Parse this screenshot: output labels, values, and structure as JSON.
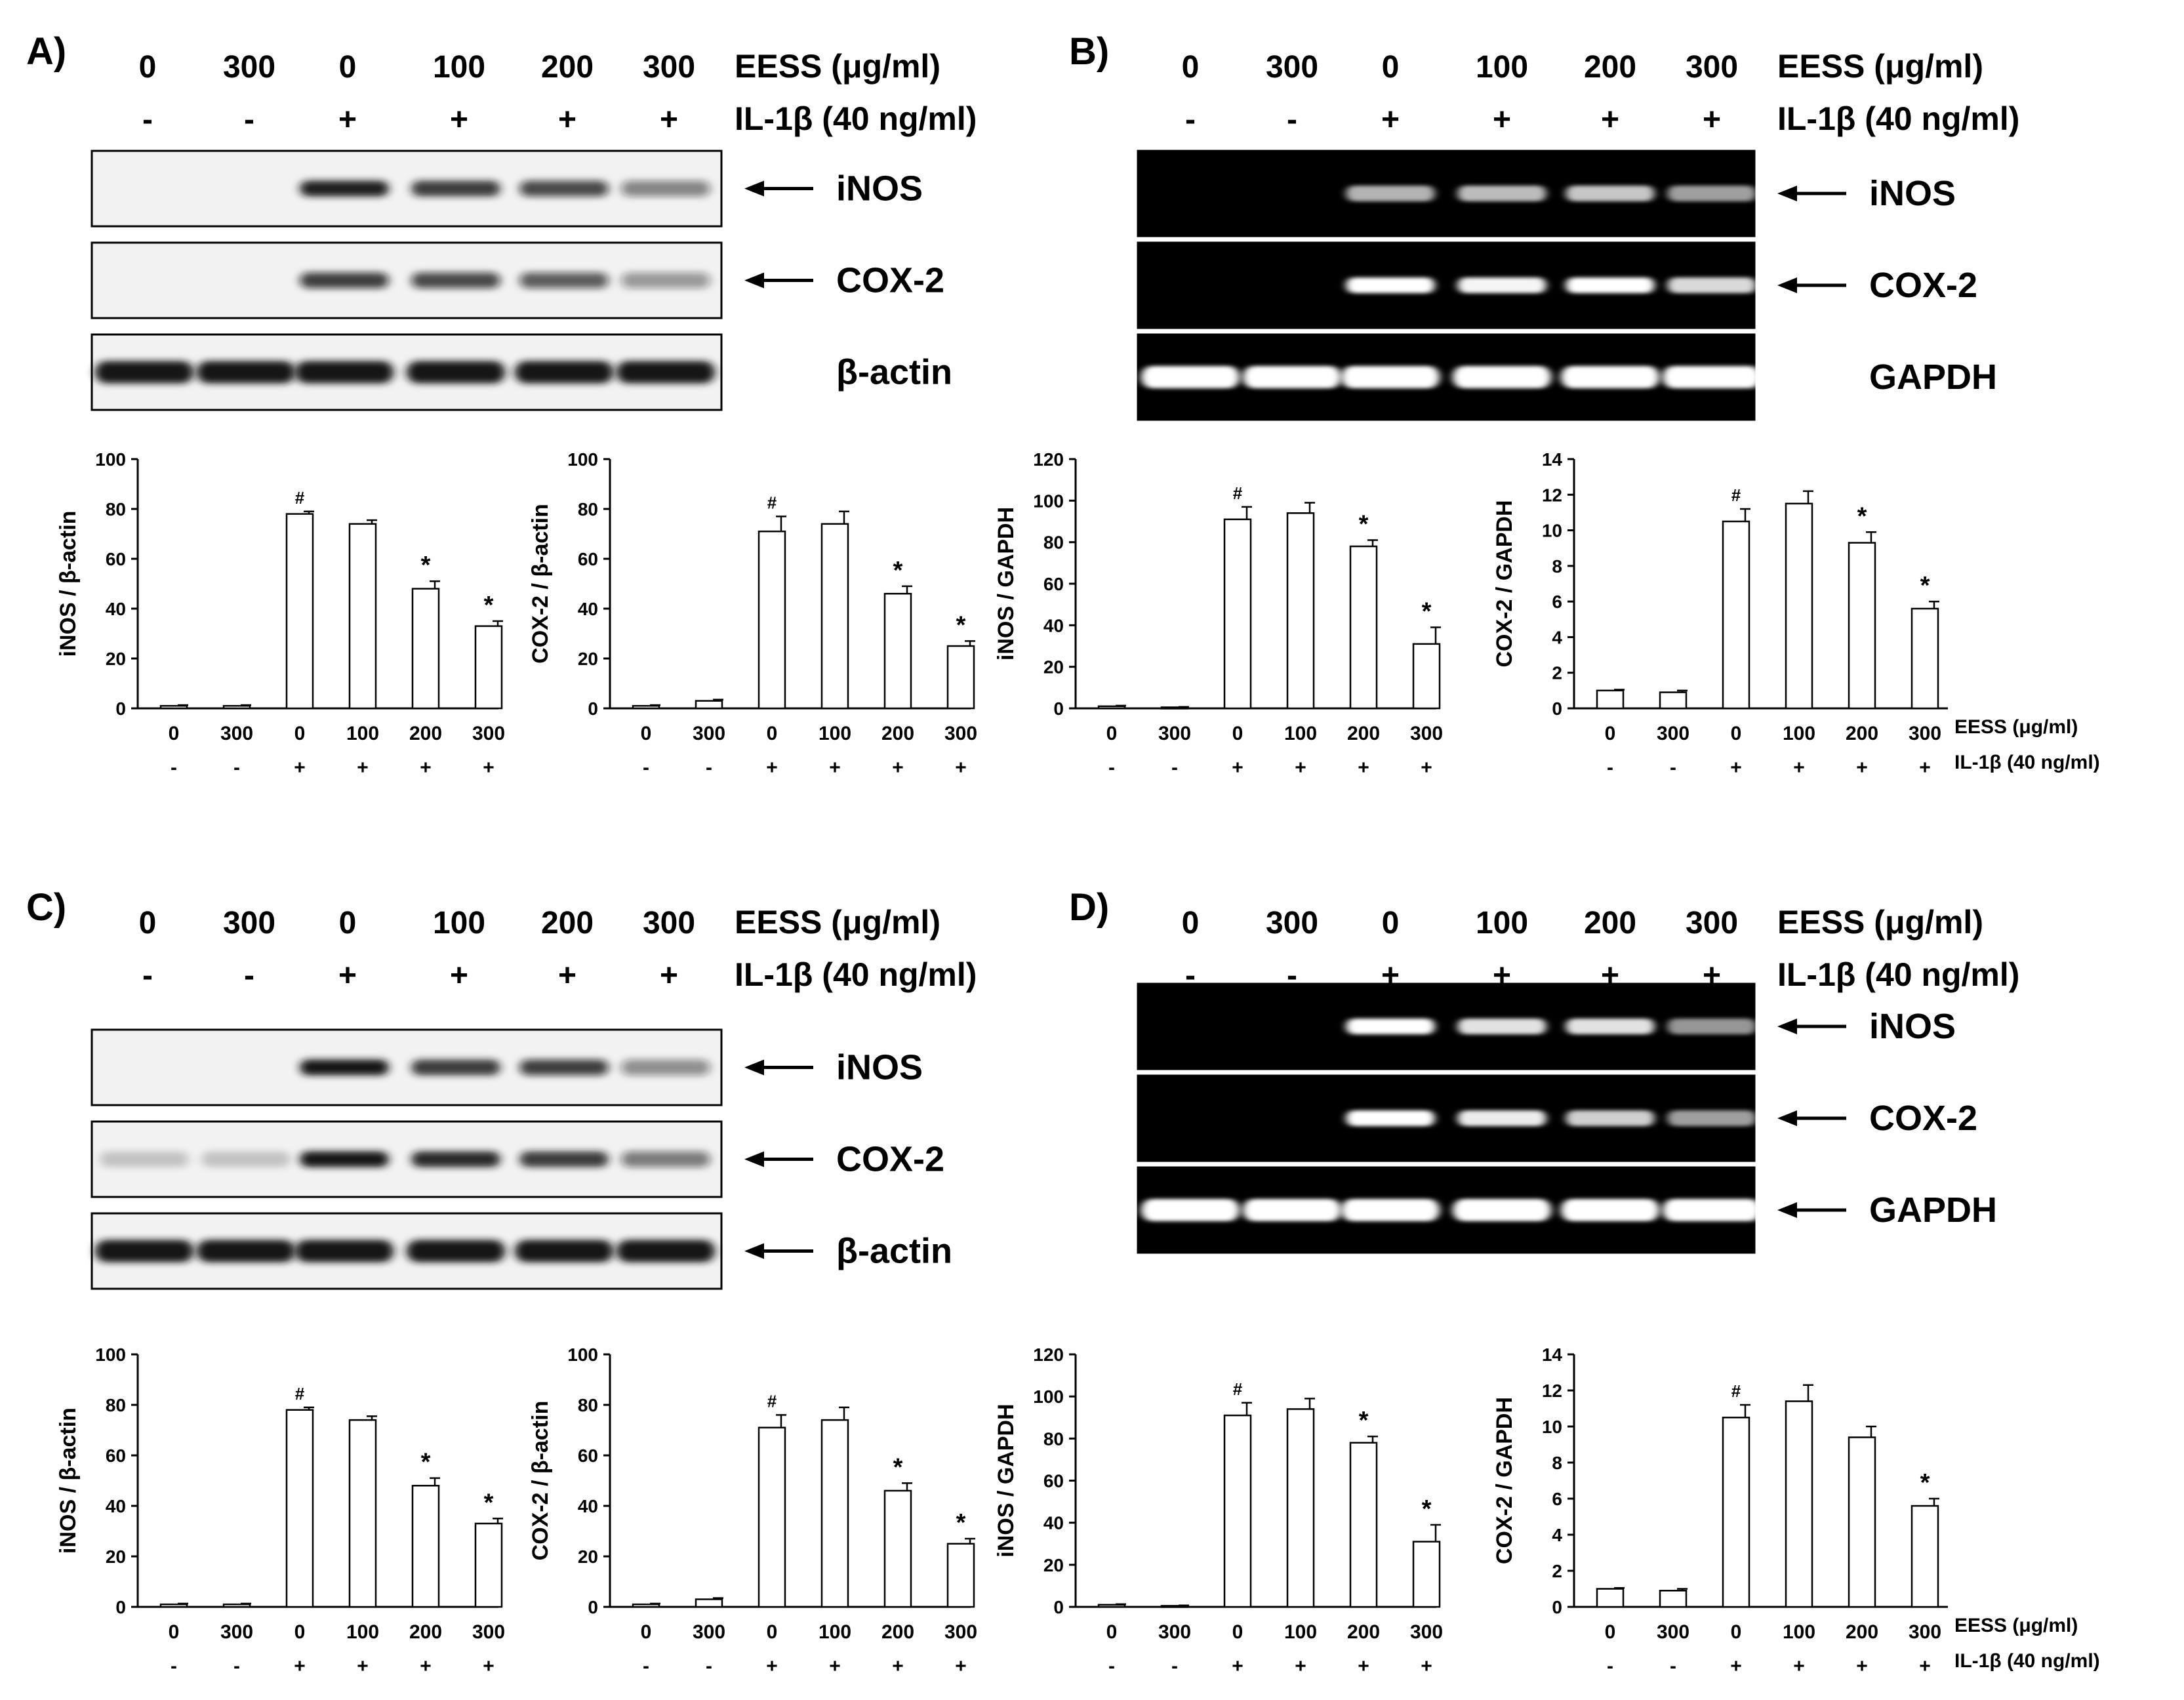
{
  "panels": [
    {
      "label": "A)",
      "treat": [
        "0",
        "300",
        "0",
        "100",
        "200",
        "300"
      ],
      "il": [
        "-",
        "-",
        "+",
        "+",
        "+",
        "+"
      ],
      "treat_label": "EESS (μg/ml)",
      "il_label": "IL-1β (40 ng/ml)",
      "blot": "western",
      "bands": [
        {
          "name": "iNOS",
          "arrow": true,
          "intensity": [
            0,
            0,
            0.95,
            0.8,
            0.7,
            0.4
          ]
        },
        {
          "name": "COX-2",
          "arrow": true,
          "intensity": [
            0,
            0,
            0.75,
            0.7,
            0.6,
            0.3
          ]
        },
        {
          "name": "β-actin",
          "arrow": false,
          "intensity": [
            1,
            1,
            1,
            1,
            1,
            1
          ]
        }
      ]
    },
    {
      "label": "B)",
      "treat": [
        "0",
        "300",
        "0",
        "100",
        "200",
        "300"
      ],
      "il": [
        "-",
        "-",
        "+",
        "+",
        "+",
        "+"
      ],
      "treat_label": "EESS (μg/ml)",
      "il_label": "IL-1β (40 ng/ml)",
      "blot": "gel",
      "bands": [
        {
          "name": "iNOS",
          "arrow": true,
          "intensity": [
            0,
            0,
            0.6,
            0.65,
            0.7,
            0.5
          ]
        },
        {
          "name": "COX-2",
          "arrow": true,
          "intensity": [
            0,
            0,
            1,
            0.95,
            1,
            0.8
          ]
        },
        {
          "name": "GAPDH",
          "arrow": false,
          "intensity": [
            1,
            1,
            1,
            1,
            1,
            1
          ]
        }
      ]
    },
    {
      "label": "C)",
      "treat": [
        "0",
        "300",
        "0",
        "100",
        "200",
        "300"
      ],
      "il": [
        "-",
        "-",
        "+",
        "+",
        "+",
        "+"
      ],
      "treat_label": "EESS (μg/ml)",
      "il_label": "IL-1β (40 ng/ml)",
      "blot": "western",
      "bands": [
        {
          "name": "iNOS",
          "arrow": true,
          "intensity": [
            0,
            0,
            1,
            0.8,
            0.75,
            0.35
          ]
        },
        {
          "name": "COX-2",
          "arrow": true,
          "intensity": [
            0.05,
            0.05,
            1,
            0.9,
            0.8,
            0.45
          ]
        },
        {
          "name": "β-actin",
          "arrow": true,
          "intensity": [
            1,
            1,
            1,
            1,
            1,
            1
          ]
        }
      ]
    },
    {
      "label": "D)",
      "treat": [
        "0",
        "300",
        "0",
        "100",
        "200",
        "300"
      ],
      "il": [
        "-",
        "-",
        "+",
        "+",
        "+",
        "+"
      ],
      "treat_label": "EESS (μg/ml)",
      "il_label": "IL-1β (40 ng/ml)",
      "blot": "gel",
      "bands": [
        {
          "name": "iNOS",
          "arrow": true,
          "intensity": [
            0,
            0,
            1,
            0.85,
            0.85,
            0.45
          ]
        },
        {
          "name": "COX-2",
          "arrow": true,
          "intensity": [
            0,
            0,
            1,
            0.9,
            0.75,
            0.5
          ]
        },
        {
          "name": "GAPDH",
          "arrow": true,
          "intensity": [
            1,
            1,
            1,
            1,
            1,
            1
          ]
        }
      ]
    }
  ],
  "chart_data": [
    {
      "type": "bar",
      "ylabel": "iNOS / β-actin",
      "categories": [
        "0",
        "300",
        "0",
        "100",
        "200",
        "300"
      ],
      "il": [
        "-",
        "-",
        "+",
        "+",
        "+",
        "+"
      ],
      "values": [
        1,
        1,
        78,
        74,
        48,
        33
      ],
      "errors": [
        0.3,
        0.3,
        1,
        1.5,
        3,
        2
      ],
      "marks": [
        "",
        "",
        "#",
        "",
        "*",
        "*"
      ],
      "ylim": [
        0,
        100
      ],
      "yticks": [
        0,
        20,
        40,
        60,
        80,
        100
      ]
    },
    {
      "type": "bar",
      "ylabel": "COX-2 / β-actin",
      "categories": [
        "0",
        "300",
        "0",
        "100",
        "200",
        "300"
      ],
      "il": [
        "-",
        "-",
        "+",
        "+",
        "+",
        "+"
      ],
      "values": [
        1,
        3,
        71,
        74,
        46,
        25
      ],
      "errors": [
        0.3,
        0.5,
        6,
        5,
        3,
        2
      ],
      "marks": [
        "",
        "",
        "#",
        "",
        "*",
        "*"
      ],
      "ylim": [
        0,
        100
      ],
      "yticks": [
        0,
        20,
        40,
        60,
        80,
        100
      ]
    },
    {
      "type": "bar",
      "ylabel": "iNOS / GAPDH",
      "categories": [
        "0",
        "300",
        "0",
        "100",
        "200",
        "300"
      ],
      "il": [
        "-",
        "-",
        "+",
        "+",
        "+",
        "+"
      ],
      "values": [
        1,
        0.5,
        91,
        94,
        78,
        31
      ],
      "errors": [
        0.3,
        0.2,
        6,
        5,
        3,
        8
      ],
      "marks": [
        "",
        "",
        "#",
        "",
        "*",
        "*"
      ],
      "ylim": [
        0,
        120
      ],
      "yticks": [
        0,
        20,
        40,
        60,
        80,
        100,
        120
      ]
    },
    {
      "type": "bar",
      "ylabel": "COX-2 / GAPDH",
      "categories": [
        "0",
        "300",
        "0",
        "100",
        "200",
        "300"
      ],
      "il": [
        "-",
        "-",
        "+",
        "+",
        "+",
        "+"
      ],
      "values": [
        1,
        0.9,
        10.5,
        11.5,
        9.3,
        5.6
      ],
      "errors": [
        0.05,
        0.1,
        0.7,
        0.7,
        0.6,
        0.4
      ],
      "marks": [
        "",
        "",
        "#",
        "",
        "*",
        "*"
      ],
      "ylim": [
        0,
        14
      ],
      "yticks": [
        0,
        2,
        4,
        6,
        8,
        10,
        12,
        14
      ],
      "xside_labels": [
        "EESS (μg/ml)",
        "IL-1β (40 ng/ml)"
      ]
    },
    {
      "type": "bar",
      "ylabel": "iNOS / β-actin",
      "categories": [
        "0",
        "300",
        "0",
        "100",
        "200",
        "300"
      ],
      "il": [
        "-",
        "-",
        "+",
        "+",
        "+",
        "+"
      ],
      "values": [
        1,
        1,
        78,
        74,
        48,
        33
      ],
      "errors": [
        0.3,
        0.3,
        1,
        1.5,
        3,
        2
      ],
      "marks": [
        "",
        "",
        "#",
        "",
        "*",
        "*"
      ],
      "ylim": [
        0,
        100
      ],
      "yticks": [
        0,
        20,
        40,
        60,
        80,
        100
      ]
    },
    {
      "type": "bar",
      "ylabel": "COX-2 / β-actin",
      "categories": [
        "0",
        "300",
        "0",
        "100",
        "200",
        "300"
      ],
      "il": [
        "-",
        "-",
        "+",
        "+",
        "+",
        "+"
      ],
      "values": [
        1,
        3,
        71,
        74,
        46,
        25
      ],
      "errors": [
        0.3,
        0.5,
        5,
        5,
        3,
        2
      ],
      "marks": [
        "",
        "",
        "#",
        "",
        "*",
        "*"
      ],
      "ylim": [
        0,
        100
      ],
      "yticks": [
        0,
        20,
        40,
        60,
        80,
        100
      ]
    },
    {
      "type": "bar",
      "ylabel": "iNOS / GAPDH",
      "categories": [
        "0",
        "300",
        "0",
        "100",
        "200",
        "300"
      ],
      "il": [
        "-",
        "-",
        "+",
        "+",
        "+",
        "+"
      ],
      "values": [
        1,
        0.5,
        91,
        94,
        78,
        31
      ],
      "errors": [
        0.3,
        0.2,
        6,
        5,
        3,
        8
      ],
      "marks": [
        "",
        "",
        "#",
        "",
        "*",
        "*"
      ],
      "ylim": [
        0,
        120
      ],
      "yticks": [
        0,
        20,
        40,
        60,
        80,
        100,
        120
      ]
    },
    {
      "type": "bar",
      "ylabel": "COX-2 / GAPDH",
      "categories": [
        "0",
        "300",
        "0",
        "100",
        "200",
        "300"
      ],
      "il": [
        "-",
        "-",
        "+",
        "+",
        "+",
        "+"
      ],
      "values": [
        1,
        0.9,
        10.5,
        11.4,
        9.4,
        5.6
      ],
      "errors": [
        0.05,
        0.1,
        0.7,
        0.9,
        0.6,
        0.4
      ],
      "marks": [
        "",
        "",
        "#",
        "",
        "",
        "*"
      ],
      "ylim": [
        0,
        14
      ],
      "yticks": [
        0,
        2,
        4,
        6,
        8,
        10,
        12,
        14
      ],
      "xside_labels": [
        "EESS (μg/ml)",
        "IL-1β (40 ng/ml)"
      ]
    }
  ]
}
